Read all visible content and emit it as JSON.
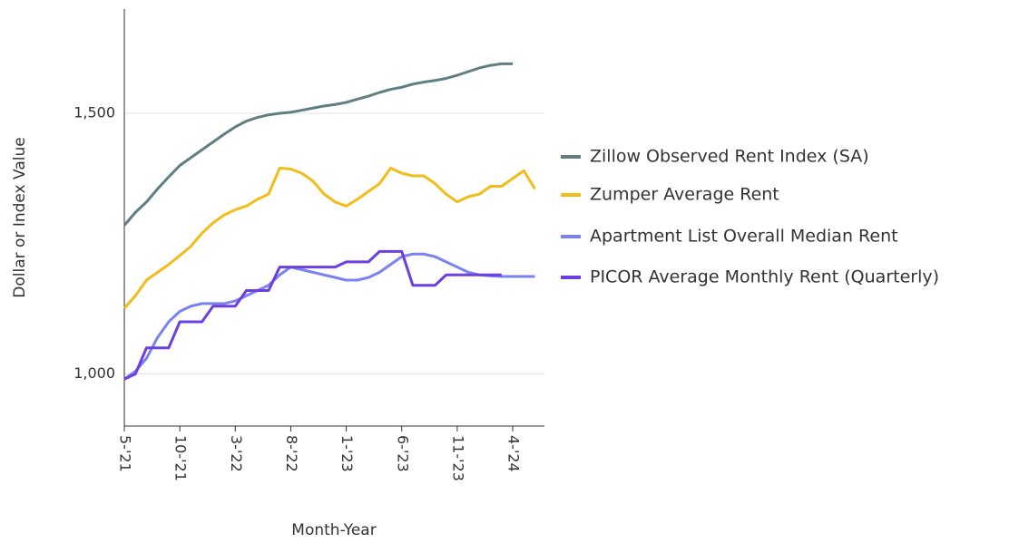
{
  "chart_data": {
    "type": "line",
    "x_label": "Month-Year",
    "y_label": "Dollar or Index Value",
    "categories": [
      "5-'21",
      null,
      null,
      null,
      null,
      "10-'21",
      null,
      null,
      null,
      null,
      "3-'22",
      null,
      null,
      null,
      null,
      "8-'22",
      null,
      null,
      null,
      null,
      "1-'23",
      null,
      null,
      null,
      null,
      "6-'23",
      null,
      null,
      null,
      null,
      "11-'23",
      null,
      null,
      null,
      null,
      "4-'24",
      null,
      null
    ],
    "series": [
      {
        "name": "Zillow Observed Rent Index (SA)",
        "color": "#5f7f82",
        "values": [
          1285,
          1310,
          1330,
          1355,
          1378,
          1400,
          1415,
          1430,
          1445,
          1460,
          1474,
          1485,
          1492,
          1497,
          1500,
          1502,
          1506,
          1510,
          1514,
          1517,
          1521,
          1527,
          1533,
          1540,
          1546,
          1550,
          1556,
          1560,
          1563,
          1567,
          1573,
          1580,
          1587,
          1592,
          1595,
          1595,
          null,
          null
        ]
      },
      {
        "name": "Zumper Average Rent",
        "color": "#f2bc1a",
        "values": [
          1126,
          1150,
          1180,
          1195,
          1210,
          1227,
          1245,
          1270,
          1290,
          1305,
          1315,
          1322,
          1335,
          1345,
          1395,
          1393,
          1385,
          1370,
          1345,
          1330,
          1322,
          1335,
          1350,
          1365,
          1395,
          1385,
          1380,
          1380,
          1365,
          1345,
          1330,
          1340,
          1345,
          1360,
          1360,
          1375,
          1390,
          1355
        ]
      },
      {
        "name": "Apartment List Overall Median Rent",
        "color": "#7b83f2",
        "values": [
          990,
          1005,
          1030,
          1070,
          1100,
          1120,
          1130,
          1135,
          1135,
          1135,
          1140,
          1150,
          1160,
          1170,
          1190,
          1205,
          1200,
          1195,
          1190,
          1185,
          1180,
          1180,
          1185,
          1195,
          1210,
          1225,
          1230,
          1230,
          1225,
          1215,
          1205,
          1195,
          1190,
          1188,
          1187,
          1187,
          1187,
          1187
        ]
      },
      {
        "name": "PICOR Average Monthly Rent (Quarterly)",
        "color": "#6b3fe0",
        "values": [
          990,
          1000,
          1050,
          1050,
          1050,
          1100,
          1100,
          1100,
          1130,
          1130,
          1130,
          1160,
          1160,
          1160,
          1205,
          1205,
          1205,
          1205,
          1205,
          1205,
          1215,
          1215,
          1215,
          1235,
          1235,
          1235,
          1170,
          1170,
          1170,
          1190,
          1190,
          1190,
          1190,
          1190,
          1190,
          null,
          null,
          null
        ]
      }
    ],
    "ylim": [
      900,
      1700
    ],
    "yticks": [
      {
        "value": 1000,
        "label": "1,000"
      },
      {
        "value": 1500,
        "label": "1,500"
      }
    ],
    "grid": true,
    "legend": "right"
  }
}
